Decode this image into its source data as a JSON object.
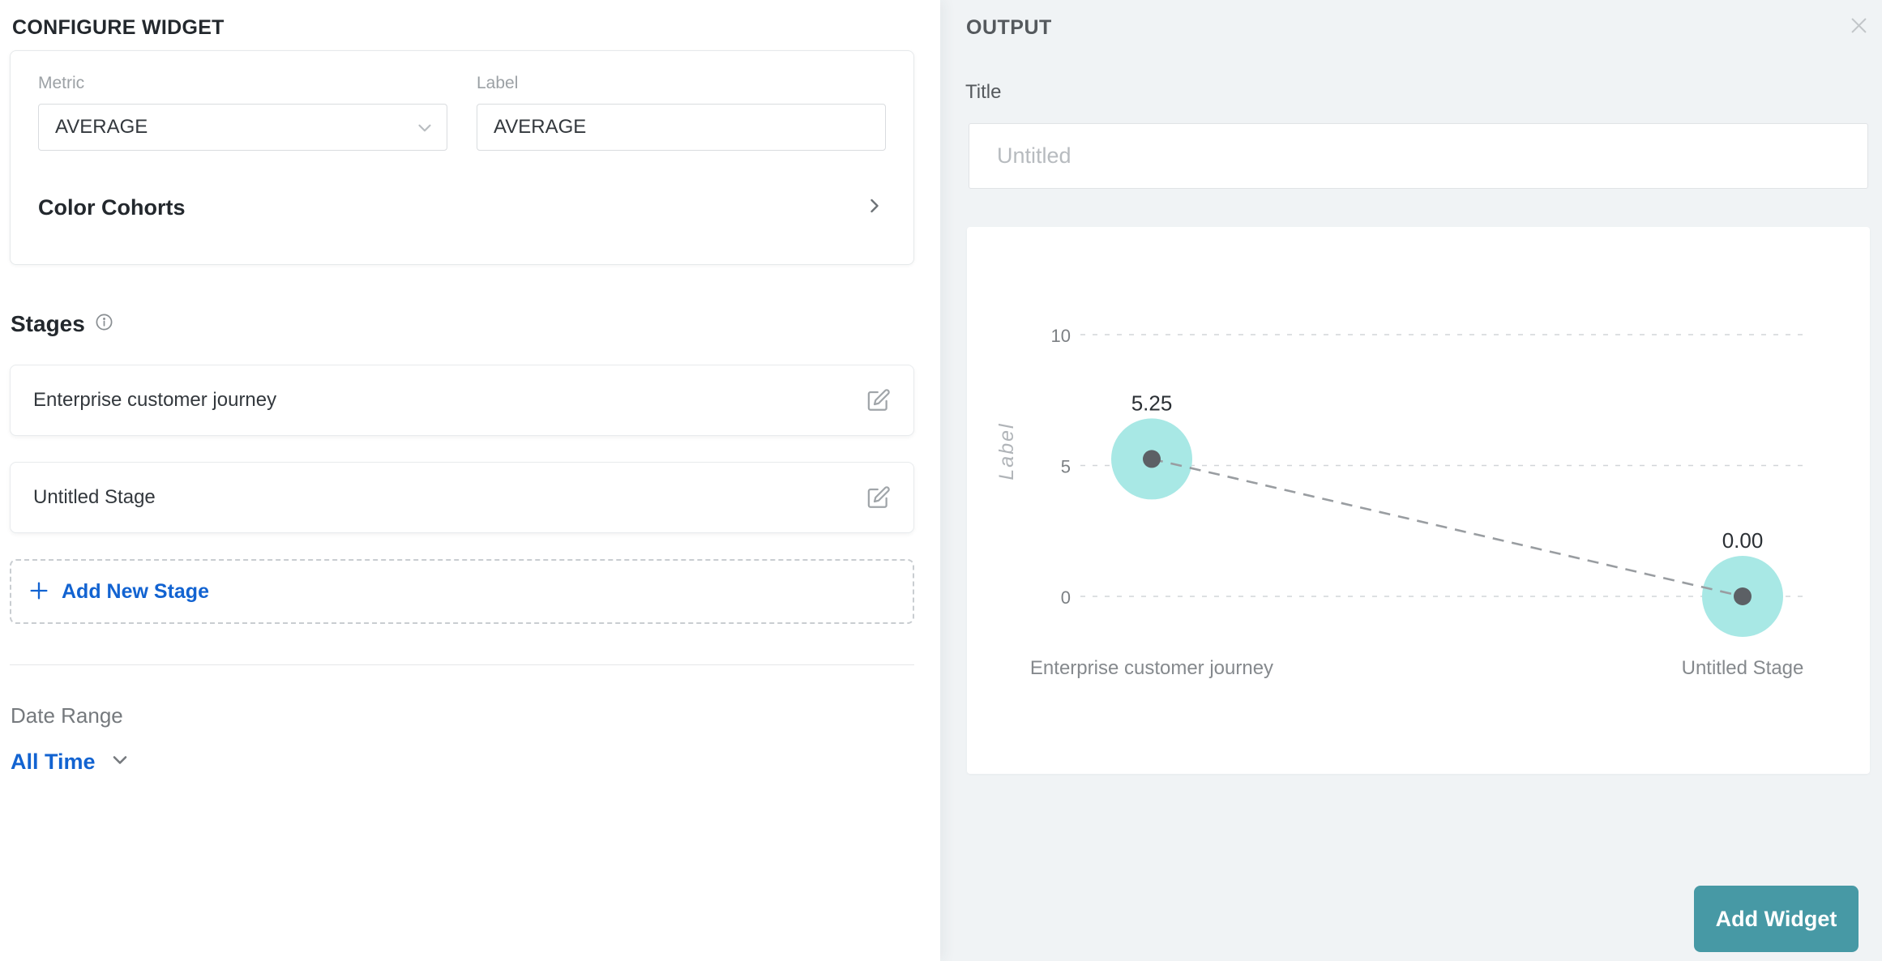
{
  "configure": {
    "title": "CONFIGURE WIDGET",
    "metric": {
      "label": "Metric",
      "value": "AVERAGE"
    },
    "label_field": {
      "label": "Label",
      "value": "AVERAGE"
    },
    "color_cohorts": {
      "label": "Color Cohorts"
    },
    "stages": {
      "heading": "Stages",
      "items": [
        "Enterprise customer journey",
        "Untitled Stage"
      ],
      "add_button": "Add New Stage"
    },
    "date_range": {
      "label": "Date Range",
      "value": "All Time"
    }
  },
  "output": {
    "title": "OUTPUT",
    "title_field": {
      "label": "Title",
      "placeholder": "Untitled"
    },
    "add_widget_button": "Add Widget"
  },
  "chart_data": {
    "type": "scatter",
    "subtype": "bubble-line-preview",
    "categories": [
      "Enterprise customer journey",
      "Untitled Stage"
    ],
    "values": [
      5.25,
      0
    ],
    "value_labels": [
      "5.25",
      "0.00"
    ],
    "ylabel": "Label",
    "yticks": [
      10,
      5,
      0
    ],
    "ylim": [
      0,
      10
    ],
    "grid": "dashed-horizontal",
    "legend_position": "none"
  },
  "colors": {
    "accent_blue": "#1263d1",
    "button_teal": "#4799a5",
    "panel_bg": "#f0f3f5",
    "bubble_fill": "#a8e8e5",
    "bubble_dot": "#5c6065",
    "gridline": "#d2d5d8",
    "connector": "#999da1"
  }
}
